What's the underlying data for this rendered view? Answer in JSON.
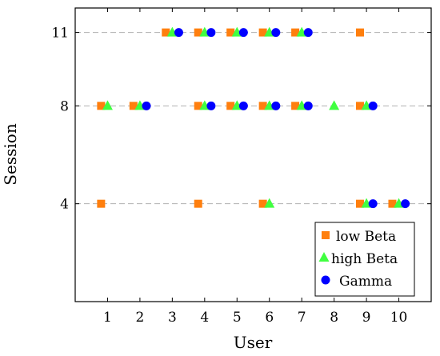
{
  "chart_data": {
    "type": "scatter",
    "xlabel": "User",
    "ylabel": "Session",
    "xlim": [
      0,
      11
    ],
    "ylim": [
      0,
      12
    ],
    "x_ticks": [
      1,
      2,
      3,
      4,
      5,
      6,
      7,
      8,
      9,
      10
    ],
    "y_ticks": [
      4,
      8,
      11
    ],
    "grid": "horizontal dashed at y ticks",
    "legend_position": "bottom-right",
    "colors": {
      "low_beta": "#ff7f0e",
      "high_beta": "#40ff40",
      "gamma": "#0000ff"
    },
    "series": [
      {
        "name": "low Beta",
        "marker": "square",
        "points": [
          {
            "x": 1,
            "y": 4
          },
          {
            "x": 4,
            "y": 4
          },
          {
            "x": 6,
            "y": 4
          },
          {
            "x": 9,
            "y": 4
          },
          {
            "x": 10,
            "y": 4
          },
          {
            "x": 1,
            "y": 8
          },
          {
            "x": 2,
            "y": 8
          },
          {
            "x": 4,
            "y": 8
          },
          {
            "x": 5,
            "y": 8
          },
          {
            "x": 6,
            "y": 8
          },
          {
            "x": 7,
            "y": 8
          },
          {
            "x": 9,
            "y": 8
          },
          {
            "x": 3,
            "y": 11
          },
          {
            "x": 4,
            "y": 11
          },
          {
            "x": 5,
            "y": 11
          },
          {
            "x": 6,
            "y": 11
          },
          {
            "x": 7,
            "y": 11
          },
          {
            "x": 9,
            "y": 11
          }
        ]
      },
      {
        "name": "high Beta",
        "marker": "triangle",
        "points": [
          {
            "x": 6,
            "y": 4
          },
          {
            "x": 9,
            "y": 4
          },
          {
            "x": 10,
            "y": 4
          },
          {
            "x": 1,
            "y": 8
          },
          {
            "x": 2,
            "y": 8
          },
          {
            "x": 4,
            "y": 8
          },
          {
            "x": 5,
            "y": 8
          },
          {
            "x": 6,
            "y": 8
          },
          {
            "x": 7,
            "y": 8
          },
          {
            "x": 8,
            "y": 8
          },
          {
            "x": 9,
            "y": 8
          },
          {
            "x": 3,
            "y": 11
          },
          {
            "x": 4,
            "y": 11
          },
          {
            "x": 5,
            "y": 11
          },
          {
            "x": 6,
            "y": 11
          },
          {
            "x": 7,
            "y": 11
          }
        ]
      },
      {
        "name": "Gamma",
        "marker": "circle",
        "points": [
          {
            "x": 9,
            "y": 4
          },
          {
            "x": 10,
            "y": 4
          },
          {
            "x": 2,
            "y": 8
          },
          {
            "x": 4,
            "y": 8
          },
          {
            "x": 5,
            "y": 8
          },
          {
            "x": 6,
            "y": 8
          },
          {
            "x": 7,
            "y": 8
          },
          {
            "x": 9,
            "y": 8
          },
          {
            "x": 3,
            "y": 11
          },
          {
            "x": 4,
            "y": 11
          },
          {
            "x": 5,
            "y": 11
          },
          {
            "x": 6,
            "y": 11
          },
          {
            "x": 7,
            "y": 11
          }
        ]
      }
    ]
  }
}
